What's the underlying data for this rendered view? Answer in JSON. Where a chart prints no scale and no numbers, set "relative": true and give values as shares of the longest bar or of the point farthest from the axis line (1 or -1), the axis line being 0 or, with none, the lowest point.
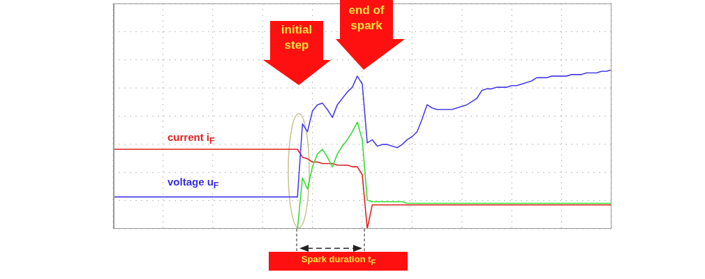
{
  "chart_data": {
    "type": "line",
    "relative": true,
    "grid": true,
    "annotations": [
      "initial step",
      "end of spark",
      "current i$_{F}$",
      "voltage u$_{F}$",
      "Spark duration  t$_{F}$"
    ],
    "categories": [
      null,
      null,
      null,
      null,
      null,
      null,
      null,
      null,
      null,
      null,
      null,
      null,
      null,
      null,
      null,
      null,
      null,
      null,
      null,
      null,
      null,
      null,
      null,
      null,
      null,
      null,
      null,
      null,
      null,
      null,
      null,
      null,
      null,
      null,
      null,
      null,
      null,
      null,
      null,
      null,
      null,
      null,
      null,
      null,
      null,
      null,
      null,
      null,
      null,
      null,
      null,
      null,
      null,
      null,
      null,
      null,
      null,
      null,
      null,
      null,
      null,
      null,
      null,
      null,
      null,
      null,
      null,
      null,
      null,
      null,
      null,
      null,
      null,
      null,
      null,
      null,
      null,
      null,
      null,
      null,
      null,
      null,
      null,
      null,
      null,
      null,
      null,
      null,
      null,
      null,
      null,
      null,
      null,
      null,
      null,
      null,
      null,
      null,
      null,
      null,
      null
    ],
    "series": [
      {
        "color": "#e02020",
        "values": [
          0.5,
          0.5,
          0.5,
          0.5,
          0.5,
          0.5,
          0.5,
          0.5,
          0.5,
          0.5,
          0.5,
          0.5,
          0.5,
          0.5,
          0.5,
          0.5,
          0.5,
          0.5,
          0.5,
          0.5,
          0.5,
          0.5,
          0.5,
          0.5,
          0.5,
          0.5,
          0.5,
          0.5,
          0.5,
          0.5,
          0.5,
          0.5,
          0.5,
          0.5,
          0.5,
          0.5,
          0.5,
          0.5,
          0.45,
          0.44,
          0.42,
          0.42,
          0.41,
          0.41,
          0.41,
          0.4,
          0.4,
          0.4,
          0.39,
          0.39,
          0.34,
          0,
          0.15,
          0.15,
          0.15,
          0.15,
          0.15,
          0.15,
          0.15,
          0.15,
          0.15,
          0.15,
          0.15,
          0.15,
          0.15,
          0.15,
          0.15,
          0.15,
          0.15,
          0.15,
          0.15,
          0.15,
          0.15,
          0.15,
          0.15,
          0.15,
          0.15,
          0.15,
          0.15,
          0.15,
          0.15,
          0.15,
          0.15,
          0.15,
          0.15,
          0.15,
          0.15,
          0.15,
          0.15,
          0.15,
          0.15,
          0.15,
          0.15,
          0.15,
          0.15,
          0.15,
          0.15,
          0.15,
          0.15,
          0.15,
          0.15
        ]
      },
      {
        "color": "#33dd33",
        "values": [
          null,
          null,
          null,
          null,
          null,
          null,
          null,
          null,
          null,
          null,
          null,
          null,
          null,
          null,
          null,
          null,
          null,
          null,
          null,
          null,
          null,
          null,
          null,
          null,
          null,
          null,
          null,
          null,
          null,
          null,
          null,
          null,
          null,
          null,
          null,
          null,
          null,
          0,
          0.32,
          0.25,
          0.39,
          0.47,
          0.5,
          0.45,
          0.39,
          0.47,
          0.52,
          0.56,
          0.61,
          0.67,
          0.56,
          0.18,
          0.17,
          0.17,
          0.17,
          0.17,
          0.17,
          0.17,
          0.17,
          0.16,
          0.16,
          0.16,
          0.16,
          0.16,
          0.16,
          0.16,
          0.16,
          0.16,
          0.16,
          0.16,
          0.16,
          0.16,
          0.16,
          0.16,
          0.16,
          0.16,
          0.16,
          0.16,
          0.16,
          0.16,
          0.16,
          0.16,
          0.16,
          0.16,
          0.16,
          0.16,
          0.16,
          0.16,
          0.16,
          0.16,
          0.16,
          0.16,
          0.16,
          0.16,
          0.16,
          0.16,
          0.16,
          0.16,
          0.16,
          0.16,
          0.16
        ]
      },
      {
        "color": "#4a3ee8",
        "values": [
          0.2,
          0.2,
          0.2,
          0.2,
          0.2,
          0.2,
          0.2,
          0.2,
          0.2,
          0.2,
          0.2,
          0.2,
          0.2,
          0.2,
          0.2,
          0.2,
          0.2,
          0.2,
          0.2,
          0.2,
          0.2,
          0.2,
          0.2,
          0.2,
          0.2,
          0.2,
          0.2,
          0.2,
          0.2,
          0.2,
          0.2,
          0.2,
          0.2,
          0.2,
          0.2,
          0.2,
          0.2,
          0.2,
          0.66,
          0.61,
          0.74,
          0.78,
          0.79,
          0.75,
          0.7,
          0.78,
          0.82,
          0.86,
          0.89,
          0.96,
          0.91,
          0.54,
          0.56,
          0.52,
          0.53,
          0.53,
          0.52,
          0.51,
          0.53,
          0.56,
          0.58,
          0.61,
          0.69,
          0.78,
          0.76,
          0.75,
          0.75,
          0.75,
          0.75,
          0.76,
          0.77,
          0.78,
          0.8,
          0.82,
          0.87,
          0.88,
          0.88,
          0.89,
          0.89,
          0.89,
          0.9,
          0.9,
          0.91,
          0.92,
          0.93,
          0.95,
          0.95,
          0.95,
          0.96,
          0.96,
          0.96,
          0.96,
          0.97,
          0.97,
          0.97,
          0.98,
          0.98,
          0.98,
          0.99,
          0.99,
          1.0
        ]
      }
    ]
  }
}
